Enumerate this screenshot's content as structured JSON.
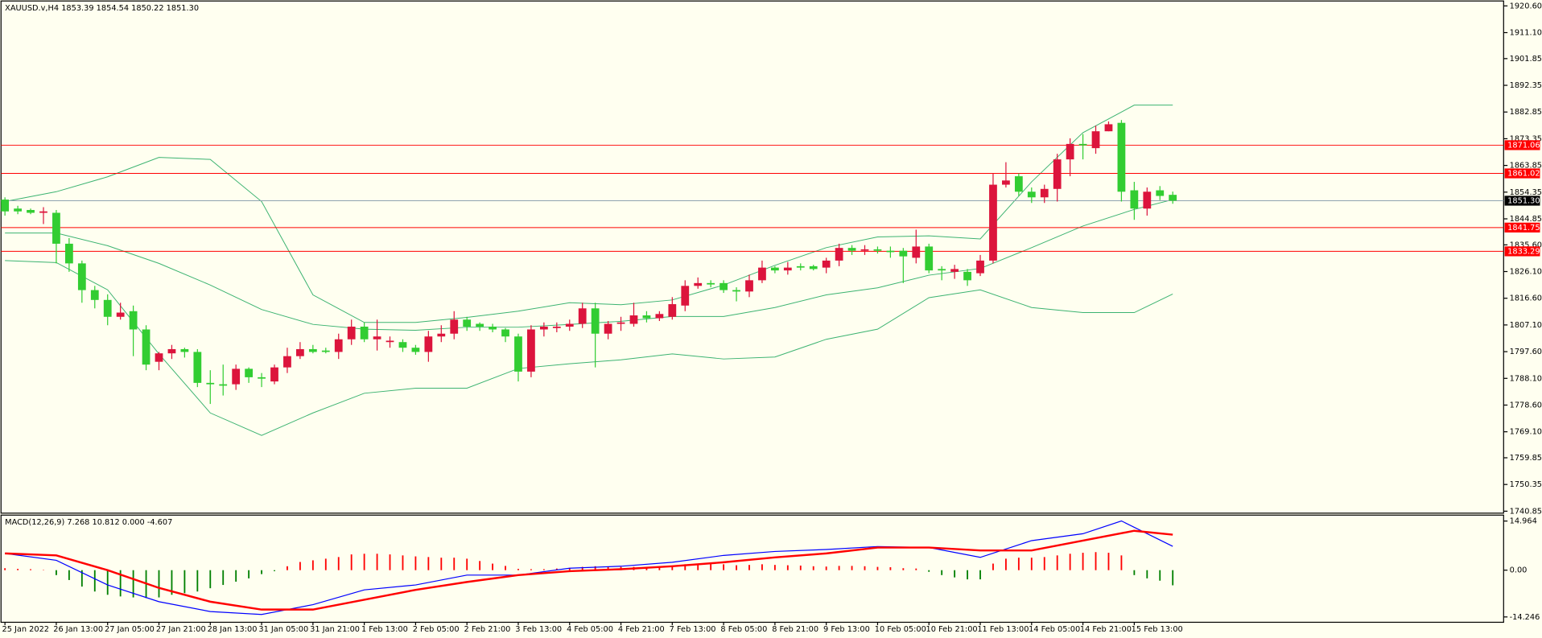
{
  "chart_data": [
    {
      "type": "candlestick",
      "title": "XAUUSD.v,H4  1853.39 1854.54 1850.22 1851.30",
      "categories": [
        "25 Jan 2022",
        null,
        null,
        null,
        "26 Jan 13:00",
        null,
        null,
        null,
        "27 Jan 05:00",
        null,
        null,
        null,
        "27 Jan 21:00",
        null,
        null,
        null,
        "28 Jan 13:00",
        null,
        null,
        null,
        "31 Jan 05:00",
        null,
        null,
        null,
        "31 Jan 21:00",
        null,
        null,
        null,
        "1 Feb 13:00",
        null,
        null,
        null,
        "2 Feb 05:00",
        null,
        null,
        null,
        "2 Feb 21:00",
        null,
        null,
        null,
        "3 Feb 13:00",
        null,
        null,
        null,
        "4 Feb 05:00",
        null,
        null,
        null,
        "4 Feb 21:00",
        null,
        null,
        null,
        "7 Feb 13:00",
        null,
        null,
        null,
        "8 Feb 05:00",
        null,
        null,
        null,
        "8 Feb 21:00",
        null,
        null,
        null,
        "9 Feb 13:00",
        null,
        null,
        null,
        "10 Feb 05:00",
        null,
        null,
        null,
        "10 Feb 21:00",
        null,
        null,
        null,
        "11 Feb 13:00",
        null,
        null,
        null,
        "14 Feb 05:00",
        null,
        null,
        null,
        "14 Feb 21:00",
        null,
        null,
        null,
        "15 Feb 13:00",
        null,
        null,
        null
      ],
      "open": [
        1851.7,
        1848.5,
        1848,
        1847,
        1847,
        1836,
        1829,
        1819.5,
        1816,
        1810,
        1812,
        1805.5,
        1794,
        1797,
        1798.5,
        1797.5,
        1786.5,
        1786,
        1786,
        1791.5,
        1788.5,
        1787,
        1792,
        1796,
        1798.5,
        1798,
        1797.5,
        1802,
        1806.5,
        1802,
        1801,
        1801,
        1799,
        1797.5,
        1803,
        1804,
        1809,
        1807.5,
        1806.5,
        1805.5,
        1803,
        1790.5,
        1805.5,
        1806,
        1806.5,
        1807.5,
        1813,
        1804,
        1807.5,
        1807.5,
        1810.5,
        1809.5,
        1810,
        1814,
        1821,
        1822,
        1822,
        1819.5,
        1819,
        1823,
        1827.5,
        1826.5,
        1828,
        1828,
        1827.5,
        1830,
        1834.5,
        1833.5,
        1834,
        1833.5,
        1833.5,
        1831,
        1835,
        1827,
        1826,
        1826,
        1825.5,
        1830,
        1857,
        1860,
        1854.5,
        1852.5,
        1855.5,
        1866,
        1871.5,
        1870,
        1876,
        1879,
        1855,
        1848.5,
        1855,
        1853.39
      ],
      "high": [
        1852.5,
        1849.5,
        1848.5,
        1849,
        1848,
        1838,
        1830,
        1821,
        1818,
        1815,
        1814,
        1807,
        1797.5,
        1800,
        1799,
        1798.5,
        1791,
        1793,
        1793,
        1792,
        1790,
        1793,
        1799,
        1801,
        1800,
        1799,
        1804,
        1809,
        1808,
        1809,
        1803,
        1802,
        1800,
        1805,
        1807,
        1812,
        1810,
        1808,
        1807.5,
        1806,
        1804,
        1807,
        1808,
        1808,
        1809,
        1815,
        1815,
        1808.5,
        1810,
        1815,
        1812,
        1812,
        1817,
        1823,
        1824,
        1823,
        1823,
        1820.5,
        1825,
        1830,
        1828,
        1829.5,
        1829,
        1828.5,
        1831,
        1836,
        1835.5,
        1835.5,
        1835,
        1835,
        1834.5,
        1841,
        1836,
        1828,
        1828.5,
        1827,
        1832,
        1861,
        1865,
        1861,
        1856,
        1857,
        1868,
        1873.5,
        1875,
        1878,
        1879.5,
        1880,
        1858,
        1856,
        1856.5,
        1854.54
      ],
      "low": [
        1846,
        1846.5,
        1846.5,
        1843,
        1829,
        1826,
        1815,
        1813,
        1807,
        1809,
        1796,
        1791,
        1791,
        1795,
        1795.5,
        1785,
        1779,
        1782,
        1784,
        1786.5,
        1785,
        1786,
        1790,
        1795,
        1797,
        1797,
        1795,
        1800,
        1801,
        1798,
        1799,
        1797.5,
        1796.5,
        1794,
        1801,
        1802,
        1805,
        1805,
        1804.5,
        1801,
        1787,
        1788.5,
        1803,
        1804.5,
        1805,
        1806,
        1792,
        1802,
        1805,
        1806.5,
        1808,
        1808.5,
        1809,
        1812,
        1820,
        1820.5,
        1818.5,
        1815.5,
        1817,
        1822,
        1825.5,
        1825,
        1826.5,
        1826.5,
        1825.5,
        1828,
        1832,
        1832,
        1832.5,
        1831,
        1822,
        1829,
        1825.5,
        1823,
        1823.5,
        1821,
        1824.5,
        1829,
        1856,
        1853,
        1850.5,
        1850.5,
        1851,
        1860,
        1866,
        1868,
        1876,
        1851,
        1844.5,
        1846,
        1851.5,
        1850.22
      ],
      "close": [
        1847.5,
        1847.5,
        1847,
        1847.5,
        1836,
        1829,
        1819.5,
        1816,
        1810,
        1811.5,
        1805.5,
        1793,
        1797,
        1798.5,
        1797.5,
        1786.5,
        1786,
        1785.5,
        1791.5,
        1788.5,
        1788,
        1792,
        1796,
        1798.5,
        1797.5,
        1797.5,
        1802,
        1806.5,
        1802,
        1803,
        1801.5,
        1799,
        1797.5,
        1803,
        1804,
        1809,
        1806.5,
        1806.5,
        1805.5,
        1803,
        1790.5,
        1805.5,
        1806.5,
        1806.5,
        1807.5,
        1813,
        1804,
        1807.5,
        1808,
        1810.5,
        1809.5,
        1811,
        1814.5,
        1821,
        1822,
        1821.5,
        1819.5,
        1819,
        1823,
        1827.5,
        1826.5,
        1827.5,
        1827.5,
        1827,
        1830,
        1834.5,
        1833.5,
        1834,
        1833.5,
        1833,
        1831.5,
        1835,
        1826.5,
        1826.5,
        1827,
        1823,
        1830,
        1857,
        1858.5,
        1854.5,
        1852.5,
        1855.5,
        1866,
        1871.5,
        1871,
        1876,
        1878.5,
        1854.5,
        1848.5,
        1854.5,
        1853,
        1851.3
      ],
      "up_color": "#dc143c",
      "down_color": "#32cd32",
      "bands": [
        {
          "x": [
            0,
            4,
            8,
            12,
            16,
            20,
            24,
            28,
            32,
            36,
            40,
            44,
            48,
            52,
            56,
            60,
            64,
            68,
            72,
            76,
            80,
            84,
            88,
            91
          ],
          "values": [
            1851,
            1854.5,
            1859.8,
            1866.7,
            1866,
            1851,
            1817.8,
            1808,
            1808,
            1809.8,
            1812,
            1815,
            1814.3,
            1816,
            1821.3,
            1828.3,
            1834.6,
            1838.4,
            1838.8,
            1837.7,
            1858,
            1875.5,
            1885.3,
            1885.3
          ]
        },
        {
          "x": [
            0,
            4,
            8,
            12,
            16,
            20,
            24,
            28,
            32,
            36,
            40,
            44,
            48,
            52,
            56,
            60,
            64,
            68,
            72,
            76,
            80,
            84,
            88,
            91
          ],
          "values": [
            1839.8,
            1839.8,
            1835.3,
            1829,
            1821.3,
            1812.6,
            1807.3,
            1805.6,
            1805.2,
            1806.3,
            1806.3,
            1807.3,
            1808.4,
            1810.1,
            1810.1,
            1813.3,
            1817.8,
            1820.3,
            1824.8,
            1827.2,
            1834.6,
            1842.3,
            1848.2,
            1851.7
          ]
        },
        {
          "x": [
            0,
            4,
            8,
            12,
            16,
            20,
            24,
            28,
            32,
            36,
            40,
            44,
            48,
            52,
            56,
            60,
            64,
            68,
            72,
            76,
            80,
            84,
            88,
            91
          ],
          "values": [
            1830,
            1829.3,
            1819.6,
            1796.8,
            1775.8,
            1767.8,
            1775.8,
            1782.8,
            1784.6,
            1784.6,
            1791.6,
            1793.3,
            1794.7,
            1796.8,
            1795,
            1795.7,
            1802,
            1805.6,
            1816.8,
            1819.6,
            1813.3,
            1811.5,
            1811.5,
            1818.1
          ]
        }
      ],
      "band_color": "#3cb371",
      "levels": [
        1871.06,
        1861.02,
        1841.75,
        1833.29
      ],
      "level_color": "#ff0000",
      "last_price": {
        "value": 1851.3,
        "label": "1851.30"
      },
      "last_price_color": "#8fa3b0",
      "ylim": [
        1740.15,
        1922.35
      ],
      "yticks": [
        {
          "value": 1920.6,
          "label": "1920.60"
        },
        {
          "value": 1911.1,
          "label": "1911.10"
        },
        1901.85,
        1892.35,
        1882.85,
        1873.35,
        1863.85,
        1854.35,
        1844.85,
        {
          "value": 1835.6,
          "label": "1835.60"
        },
        {
          "value": 1826.1,
          "label": "1826.10"
        },
        {
          "value": 1816.6,
          "label": "1816.60"
        },
        {
          "value": 1807.1,
          "label": "1807.10"
        },
        {
          "value": 1797.6,
          "label": "1797.60"
        },
        {
          "value": 1788.1,
          "label": "1788.10"
        },
        {
          "value": 1778.6,
          "label": "1778.60"
        },
        {
          "value": 1769.1,
          "label": "1769.10"
        },
        1759.85,
        1750.35,
        1740.85
      ]
    },
    {
      "type": "bar",
      "title": "MACD(12,26,9) 7.268 10.812 0.000 -4.607",
      "values": [
        0.6,
        0.4,
        0.3,
        0.1,
        -1.5,
        -3,
        -5,
        -6.5,
        -7.5,
        -8,
        -8.3,
        -8.5,
        -8.3,
        -7.5,
        -7,
        -6.5,
        -5.5,
        -4.5,
        -3.5,
        -2.5,
        -1.2,
        -0.3,
        1.2,
        2.5,
        3,
        3.5,
        4,
        4.8,
        5,
        5,
        4.8,
        4.5,
        4.2,
        4,
        3.8,
        3.8,
        3.5,
        2.8,
        2,
        1.3,
        0.4,
        0.3,
        0.3,
        0.5,
        0.7,
        1,
        1.2,
        1.1,
        1,
        1,
        1,
        1,
        1.2,
        1.8,
        2,
        2,
        1.8,
        1.5,
        1.6,
        1.8,
        1.6,
        1.5,
        1.4,
        1.2,
        1.1,
        1.3,
        1.3,
        1.2,
        1,
        0.9,
        0.6,
        0.5,
        -0.5,
        -1.5,
        -2.2,
        -2.8,
        -2.8,
        2,
        3.5,
        3.8,
        3.8,
        4,
        4.5,
        5,
        5.3,
        5.5,
        5.3,
        4.5,
        -1.5,
        -2.5,
        -3.2,
        -4.607
      ],
      "positive_color": "#ff0000",
      "negative_color": "#008000",
      "lines": [
        {
          "color": "#0000ff",
          "x": [
            0,
            4,
            8,
            12,
            16,
            20,
            24,
            28,
            32,
            36,
            40,
            44,
            48,
            52,
            56,
            60,
            64,
            68,
            72,
            76,
            80,
            84,
            87,
            91
          ],
          "values": [
            5.1,
            3,
            -4.5,
            -9.6,
            -12.6,
            -13.5,
            -10.5,
            -6,
            -4.5,
            -1.5,
            -1.5,
            0.6,
            1.2,
            2.4,
            4.5,
            5.7,
            6.3,
            7.2,
            6.9,
            3.9,
            9,
            11.1,
            15,
            7.268
          ]
        },
        {
          "color": "#ff0000",
          "x": [
            0,
            4,
            8,
            12,
            16,
            20,
            24,
            28,
            32,
            36,
            40,
            44,
            48,
            52,
            56,
            60,
            64,
            68,
            72,
            76,
            80,
            84,
            88,
            91
          ],
          "values": [
            5.1,
            4.5,
            0,
            -5.4,
            -9.6,
            -12,
            -12,
            -9,
            -6,
            -3.6,
            -1.5,
            -0.3,
            0.3,
            1.2,
            2.4,
            3.9,
            5.1,
            6.9,
            6.9,
            6,
            6,
            9,
            12,
            10.812
          ]
        }
      ],
      "ylim": [
        -15.87,
        16.77
      ],
      "yticks": [
        14.964,
        {
          "value": 0,
          "label": "0.00"
        },
        -14.246
      ]
    }
  ]
}
